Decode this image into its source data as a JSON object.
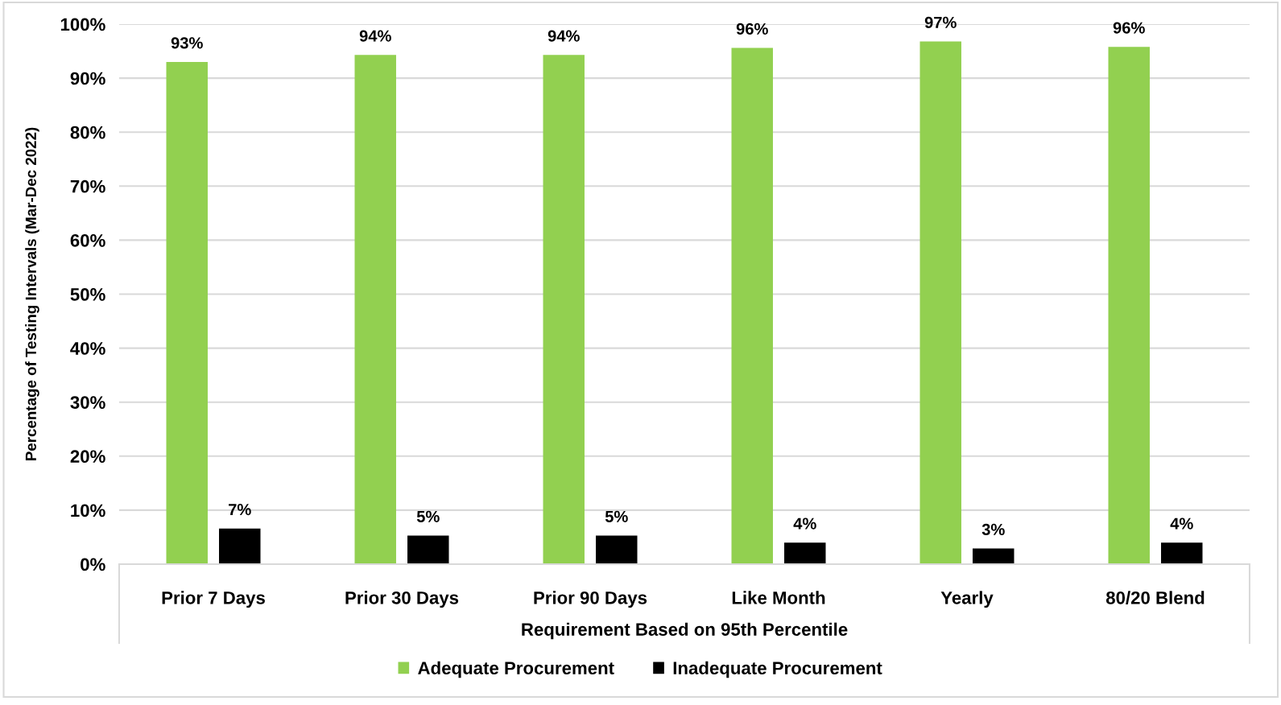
{
  "chart_data": {
    "type": "bar",
    "categories": [
      "Prior 7 Days",
      "Prior 30 Days",
      "Prior 90 Days",
      "Like Month",
      "Yearly",
      "80/20 Blend"
    ],
    "series": [
      {
        "name": "Adequate Procurement",
        "color": "#92d050",
        "values": [
          93.0,
          94.3,
          94.3,
          95.6,
          96.8,
          95.8
        ],
        "value_labels": [
          "93%",
          "94%",
          "94%",
          "96%",
          "97%",
          "96%"
        ]
      },
      {
        "name": "Inadequate Procurement",
        "color": "#000000",
        "values": [
          6.6,
          5.3,
          5.3,
          4.0,
          2.9,
          4.0
        ],
        "value_labels": [
          "7%",
          "5%",
          "5%",
          "4%",
          "3%",
          "4%"
        ]
      }
    ],
    "xlabel": "Requirement Based on 95th Percentile",
    "ylabel": "Percentage of Testing Intervals (Mar-Dec 2022)",
    "ylim": [
      0,
      100
    ],
    "yticks": [
      {
        "value": 0,
        "label": "0%"
      },
      {
        "value": 10,
        "label": "10%"
      },
      {
        "value": 20,
        "label": "20%"
      },
      {
        "value": 30,
        "label": "30%"
      },
      {
        "value": 40,
        "label": "40%"
      },
      {
        "value": 50,
        "label": "50%"
      },
      {
        "value": 60,
        "label": "60%"
      },
      {
        "value": 70,
        "label": "70%"
      },
      {
        "value": 80,
        "label": "80%"
      },
      {
        "value": 90,
        "label": "90%"
      },
      {
        "value": 100,
        "label": "100%"
      }
    ],
    "grid": "y",
    "legend": "bottom"
  }
}
